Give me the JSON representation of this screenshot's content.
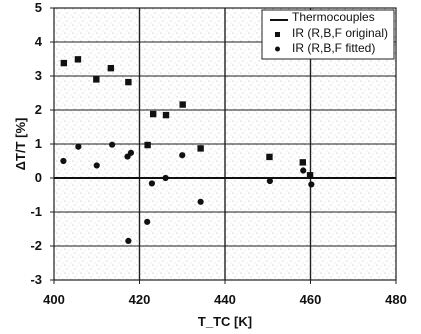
{
  "chart_data": {
    "type": "scatter",
    "xlabel": "T_TC [K]",
    "ylabel": "ΔT/T [%]",
    "xlim": [
      400,
      480
    ],
    "ylim": [
      -3,
      5
    ],
    "x_ticks": [
      "400",
      "420",
      "440",
      "460",
      "480"
    ],
    "y_ticks": [
      "5",
      "4",
      "3",
      "2",
      "1",
      "0",
      "-1",
      "-2",
      "-3"
    ],
    "grid": "major lines on",
    "legend_position": "top-right",
    "series": [
      {
        "name": "Thermocouples",
        "type": "line",
        "x": [
          400,
          480
        ],
        "y": [
          0,
          0
        ]
      },
      {
        "name": "IR (R,B,F original)",
        "type": "scatter",
        "marker": "square",
        "x": [
          402.3,
          405.6,
          409.9,
          413.3,
          417.4,
          421.9,
          423.2,
          426.2,
          430.1,
          434.3,
          450.4,
          458.2,
          459.9
        ],
        "y": [
          3.38,
          3.49,
          2.9,
          3.23,
          2.82,
          0.97,
          1.88,
          1.85,
          2.16,
          0.87,
          0.62,
          0.46,
          0.08
        ]
      },
      {
        "name": "IR (R,B,F fitted)",
        "type": "scatter",
        "marker": "circle",
        "x": [
          402.2,
          405.7,
          410.0,
          413.6,
          417.2,
          417.4,
          418.0,
          421.8,
          422.9,
          426.1,
          430.0,
          434.3,
          450.5,
          458.3,
          460.2
        ],
        "y": [
          0.5,
          0.92,
          0.37,
          0.98,
          0.63,
          -1.85,
          0.74,
          -1.29,
          -0.16,
          0.0,
          0.67,
          -0.7,
          -0.09,
          0.22,
          -0.19
        ]
      }
    ]
  }
}
